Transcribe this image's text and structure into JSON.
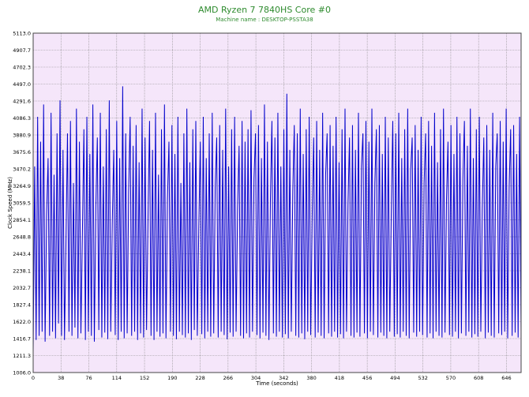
{
  "chart_data": {
    "type": "line",
    "title": "AMD Ryzen 7 7840HS Core #0",
    "subtitle": "Machine name : DESKTOP-PSSTA38",
    "xlabel": "Time (seconds)",
    "ylabel": "Clock Speed (MHz)",
    "xlim": [
      0,
      666
    ],
    "ylim": [
      1006.0,
      5113.0
    ],
    "x_ticks": [
      0,
      38,
      76,
      114,
      152,
      190,
      228,
      266,
      304,
      342,
      380,
      418,
      456,
      494,
      532,
      570,
      608,
      646
    ],
    "y_ticks": [
      "1006.0",
      "1211.3",
      "1416.7",
      "1622.0",
      "1827.4",
      "2032.7",
      "2238.1",
      "2443.4",
      "2648.8",
      "2854.1",
      "3059.5",
      "3264.9",
      "3470.2",
      "3675.6",
      "3880.9",
      "4086.3",
      "4291.6",
      "4497.0",
      "4702.3",
      "4907.7",
      "5113.0"
    ],
    "grid": true,
    "legend": "none",
    "colors": {
      "line": "#0000cc",
      "plot_bg": "#f5e6fa",
      "grid": "#888888",
      "title": "#2e8b2e"
    },
    "series": [
      {
        "values": [
          1250,
          3500,
          1400,
          4100,
          1450,
          3800,
          1500,
          4250,
          1380,
          2900,
          3600,
          1450,
          4150,
          1500,
          3400,
          1420,
          3900,
          1600,
          4300,
          1450,
          3700,
          1400,
          2600,
          3900,
          1500,
          4050,
          1450,
          3300,
          1550,
          4200,
          1420,
          3800,
          1480,
          2700,
          3950,
          1400,
          4100,
          1500,
          3650,
          1450,
          4250,
          1380,
          3000,
          3850,
          1520,
          4150,
          1430,
          3500,
          1490,
          3950,
          1410,
          4300,
          1500,
          2800,
          3700,
          1460,
          4050,
          1400,
          3600,
          1500,
          4470,
          1420,
          3900,
          1480,
          3200,
          4100,
          1450,
          3750,
          1500,
          4000,
          1400,
          3550,
          1480,
          4200,
          1430,
          3850,
          1520,
          2900,
          4050,
          1450,
          3700,
          1400,
          4150,
          1500,
          3400,
          1440,
          3950,
          1480,
          4250,
          1420,
          3100,
          3800,
          1500,
          4000,
          1450,
          3650,
          1410,
          4100,
          1500,
          3300,
          1460,
          3900,
          1430,
          4200,
          1480,
          3550,
          1400,
          3950,
          1520,
          4050,
          1450,
          2750,
          3800,
          1470,
          4100,
          1420,
          3600,
          1500,
          3900,
          1440,
          4150,
          1480,
          3250,
          3850,
          1430,
          4000,
          1500,
          3700,
          1460,
          4200,
          1410,
          3500,
          1490,
          3950,
          1440,
          4100,
          1500,
          3000,
          3750,
          1450,
          4050,
          1420,
          3800,
          1480,
          3950,
          1430,
          4180,
          1500,
          3350,
          3900,
          1460,
          4000,
          1420,
          3600,
          1490,
          4250,
          1450,
          3800,
          1400,
          3100,
          4050,
          1480,
          3850,
          1440,
          4150,
          1500,
          3500,
          1430,
          3950,
          1470,
          4380,
          1420,
          3700,
          1500,
          3200,
          4000,
          1450,
          3900,
          1430,
          4200,
          1480,
          3650,
          1410,
          3950,
          1500,
          4100,
          1460,
          2900,
          3850,
          1430,
          4050,
          1490,
          3700,
          1450,
          4150,
          1420,
          3400,
          3900,
          1480,
          4000,
          1440,
          3750,
          1500,
          4100,
          1430,
          3550,
          1470,
          3950,
          1420,
          4200,
          1500,
          3050,
          3850,
          1450,
          4000,
          1430,
          3700,
          1490,
          4150,
          1440,
          3500,
          3900,
          1480,
          4050,
          1420,
          3800,
          1500,
          4200,
          1460,
          3300,
          3950,
          1430,
          4000,
          1490,
          3650,
          1450,
          4100,
          1420,
          3850,
          1500,
          2950,
          4050,
          1440,
          3900,
          1470,
          4150,
          1430,
          3600,
          1500,
          3950,
          1450,
          4200,
          1420,
          3450,
          3850,
          1490,
          4000,
          1440,
          3700,
          1500,
          4100,
          1460,
          3300,
          3900,
          1430,
          4050,
          1480,
          3750,
          1420,
          4150,
          1500,
          3550,
          1450,
          3950,
          1430,
          4200,
          1490,
          3100,
          3800,
          1460,
          4000,
          1440,
          3650,
          1500,
          4100,
          1420,
          3900,
          1480,
          3350,
          4050,
          1450,
          3750,
          1500,
          4200,
          1430,
          3600,
          1470,
          3950,
          1440,
          4100,
          1500,
          3000,
          3850,
          1420,
          4000,
          1490,
          3700,
          1450,
          4150,
          1430,
          3500,
          3900,
          1480,
          4050,
          1460,
          3800,
          1500,
          4200,
          1420,
          3250,
          3950,
          1450,
          4000,
          1490,
          3650,
          1430,
          4100,
          1500
        ],
        "color": "#0000cc"
      }
    ]
  }
}
